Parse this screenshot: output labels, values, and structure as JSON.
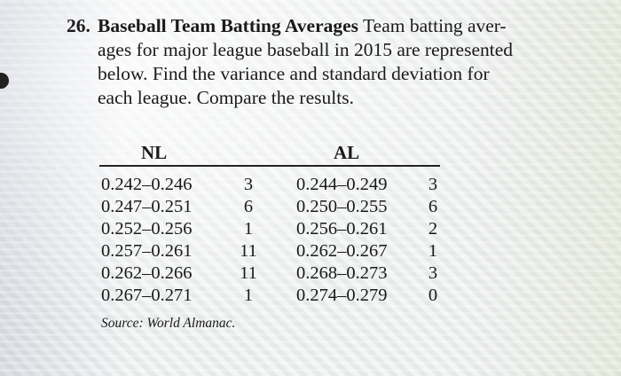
{
  "problem": {
    "number": "26.",
    "title": "Baseball Team Batting Averages",
    "lines": [
      "Team batting aver-",
      "ages for major league baseball in 2015 are represented",
      "below. Find the variance and standard deviation for",
      "each league. Compare the results."
    ]
  },
  "table": {
    "headers": {
      "nl": "NL",
      "al": "AL"
    },
    "rows": [
      {
        "nl_range": "0.242–0.246",
        "nl_freq": "3",
        "al_range": "0.244–0.249",
        "al_freq": "3"
      },
      {
        "nl_range": "0.247–0.251",
        "nl_freq": "6",
        "al_range": "0.250–0.255",
        "al_freq": "6"
      },
      {
        "nl_range": "0.252–0.256",
        "nl_freq": "1",
        "al_range": "0.256–0.261",
        "al_freq": "2"
      },
      {
        "nl_range": "0.257–0.261",
        "nl_freq": "11",
        "al_range": "0.262–0.267",
        "al_freq": "1"
      },
      {
        "nl_range": "0.262–0.266",
        "nl_freq": "11",
        "al_range": "0.268–0.273",
        "al_freq": "3"
      },
      {
        "nl_range": "0.267–0.271",
        "nl_freq": "1",
        "al_range": "0.274–0.279",
        "al_freq": "0"
      }
    ],
    "source": "Source: World Almanac."
  }
}
